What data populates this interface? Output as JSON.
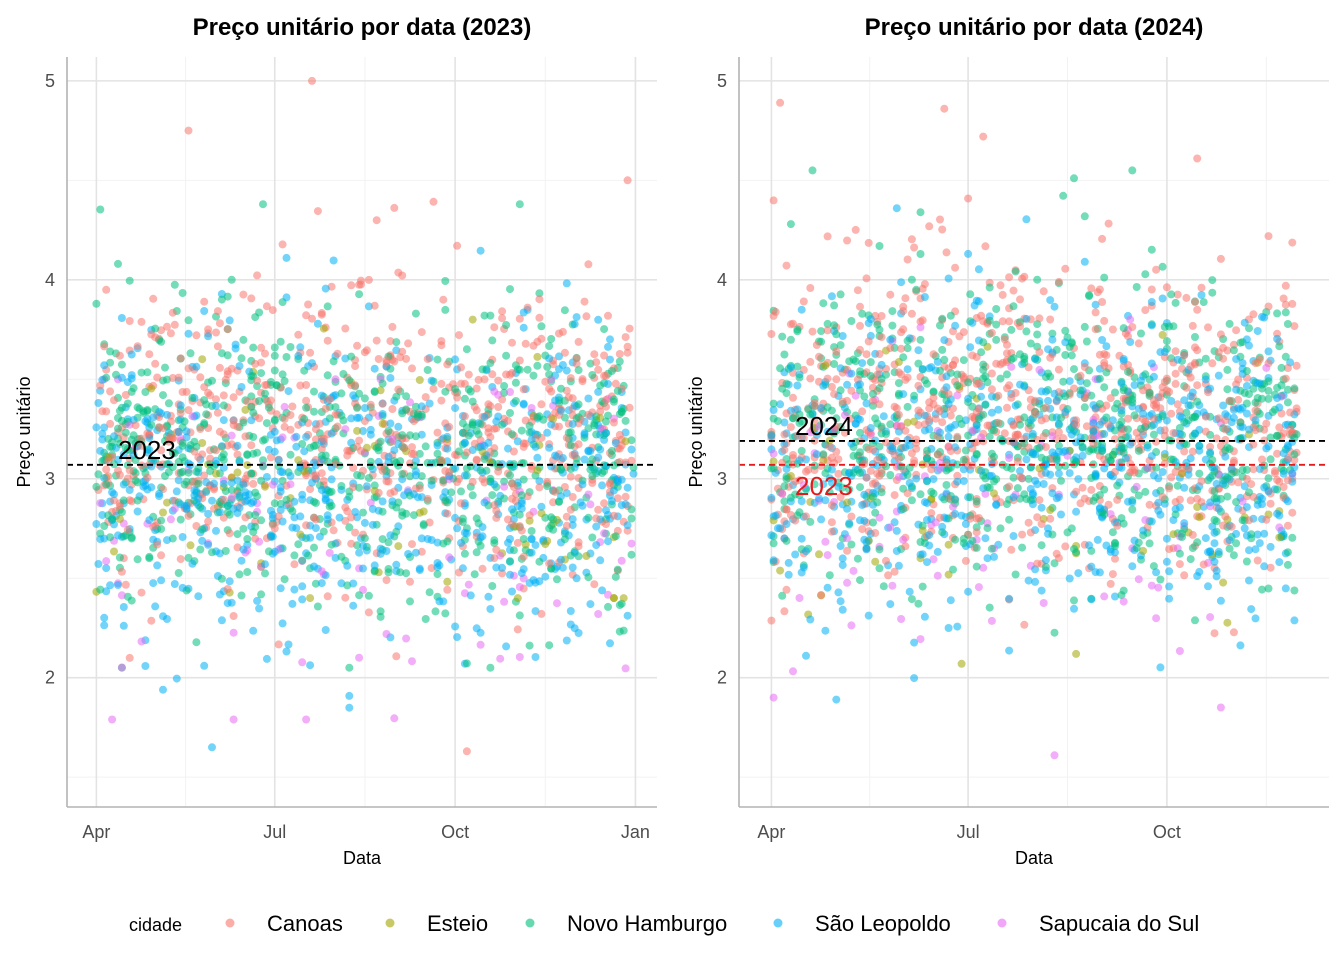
{
  "legend": {
    "title": "cidade",
    "entries": [
      {
        "name": "Canoas",
        "color": "#F8766D"
      },
      {
        "name": "Esteio",
        "color": "#A3A500"
      },
      {
        "name": "Novo Hamburgo",
        "color": "#00BF7D"
      },
      {
        "name": "São Leopoldo",
        "color": "#00B0F6"
      },
      {
        "name": "Sapucaia do Sul",
        "color": "#E76BF3"
      }
    ],
    "position": "bottom"
  },
  "chart_data": [
    {
      "type": "scatter",
      "title": "Preço unitário por data (2023)",
      "xlabel": "Data",
      "ylabel": "Preço unitário",
      "x_tick_labels": [
        "Apr",
        "Jul",
        "Oct",
        "Jan"
      ],
      "x_tick_values": [
        "2023-04-01",
        "2023-07-01",
        "2023-10-01",
        "2024-01-01"
      ],
      "xlim": [
        "2023-03-17",
        "2024-01-12"
      ],
      "y_tick_labels": [
        "2",
        "3",
        "4",
        "5"
      ],
      "y_tick_values": [
        2,
        3,
        4,
        5
      ],
      "ylim": [
        1.35,
        5.12
      ],
      "grid": true,
      "reference_lines": [
        {
          "label": "2023",
          "value": 3.07,
          "color": "#000000",
          "style": "dashed"
        }
      ],
      "point_count": 2200,
      "series_ranges": [
        {
          "name": "Canoas",
          "x_range": [
            "2023-04-01",
            "2023-12-31"
          ],
          "y_range": [
            1.63,
            5.0
          ],
          "y_center": 3.25
        },
        {
          "name": "Esteio",
          "x_range": [
            "2023-04-01",
            "2023-12-31"
          ],
          "y_range": [
            2.4,
            3.8
          ],
          "y_center": 2.95
        },
        {
          "name": "Novo Hamburgo",
          "x_range": [
            "2023-04-01",
            "2023-12-31"
          ],
          "y_range": [
            2.05,
            4.38
          ],
          "y_center": 3.1
        },
        {
          "name": "São Leopoldo",
          "x_range": [
            "2023-04-01",
            "2023-12-31"
          ],
          "y_range": [
            1.65,
            4.2
          ],
          "y_center": 2.95
        },
        {
          "name": "Sapucaia do Sul",
          "x_range": [
            "2023-04-01",
            "2023-12-31"
          ],
          "y_range": [
            1.79,
            3.5
          ],
          "y_center": 2.8
        }
      ],
      "notable_points": [
        {
          "series": "Canoas",
          "x": "2023-07-20",
          "y": 5.0
        },
        {
          "series": "Canoas",
          "x": "2023-05-18",
          "y": 4.75
        },
        {
          "series": "Canoas",
          "x": "2023-12-28",
          "y": 4.5
        },
        {
          "series": "Canoas",
          "x": "2023-10-07",
          "y": 1.63
        },
        {
          "series": "São Leopoldo",
          "x": "2023-05-30",
          "y": 1.65
        },
        {
          "series": "Sapucaia do Sul",
          "x": "2023-04-09",
          "y": 1.79
        },
        {
          "series": "Sapucaia do Sul",
          "x": "2023-06-10",
          "y": 1.79
        },
        {
          "series": "Novo Hamburgo",
          "x": "2023-06-25",
          "y": 4.38
        }
      ]
    },
    {
      "type": "scatter",
      "title": "Preço unitário por data (2024)",
      "xlabel": "Data",
      "ylabel": "Preço unitário",
      "x_tick_labels": [
        "Apr",
        "Jul",
        "Oct"
      ],
      "x_tick_values": [
        "2024-04-01",
        "2024-07-01",
        "2024-10-01"
      ],
      "xlim": [
        "2024-03-17",
        "2024-12-15"
      ],
      "y_tick_labels": [
        "2",
        "3",
        "4",
        "5"
      ],
      "y_tick_values": [
        2,
        3,
        4,
        5
      ],
      "ylim": [
        1.35,
        5.12
      ],
      "grid": true,
      "reference_lines": [
        {
          "label": "2024",
          "value": 3.19,
          "color": "#000000",
          "style": "dashed"
        },
        {
          "label": "2023",
          "value": 3.07,
          "color": "#E41A1C",
          "style": "dashed"
        }
      ],
      "point_count": 2300,
      "series_ranges": [
        {
          "name": "Canoas",
          "x_range": [
            "2024-04-01",
            "2024-11-30"
          ],
          "y_range": [
            2.02,
            4.89
          ],
          "y_center": 3.3
        },
        {
          "name": "Esteio",
          "x_range": [
            "2024-04-01",
            "2024-11-30"
          ],
          "y_range": [
            2.07,
            4.1
          ],
          "y_center": 3.0
        },
        {
          "name": "Novo Hamburgo",
          "x_range": [
            "2024-04-01",
            "2024-11-30"
          ],
          "y_range": [
            1.97,
            4.55
          ],
          "y_center": 3.25
        },
        {
          "name": "São Leopoldo",
          "x_range": [
            "2024-04-01",
            "2024-11-30"
          ],
          "y_range": [
            1.89,
            4.36
          ],
          "y_center": 3.1
        },
        {
          "name": "Sapucaia do Sul",
          "x_range": [
            "2024-04-01",
            "2024-11-30"
          ],
          "y_range": [
            1.61,
            3.8
          ],
          "y_center": 2.9
        }
      ],
      "notable_points": [
        {
          "series": "Canoas",
          "x": "2024-04-05",
          "y": 4.89
        },
        {
          "series": "Canoas",
          "x": "2024-06-20",
          "y": 4.86
        },
        {
          "series": "Canoas",
          "x": "2024-07-08",
          "y": 4.72
        },
        {
          "series": "Canoas",
          "x": "2024-10-15",
          "y": 4.61
        },
        {
          "series": "Novo Hamburgo",
          "x": "2024-04-20",
          "y": 4.55
        },
        {
          "series": "Sapucaia do Sul",
          "x": "2024-08-10",
          "y": 1.61
        },
        {
          "series": "Sapucaia do Sul",
          "x": "2024-04-02",
          "y": 1.9
        },
        {
          "series": "São Leopoldo",
          "x": "2024-05-01",
          "y": 1.89
        },
        {
          "series": "Sapucaia do Sul",
          "x": "2024-10-26",
          "y": 1.85
        }
      ]
    }
  ]
}
